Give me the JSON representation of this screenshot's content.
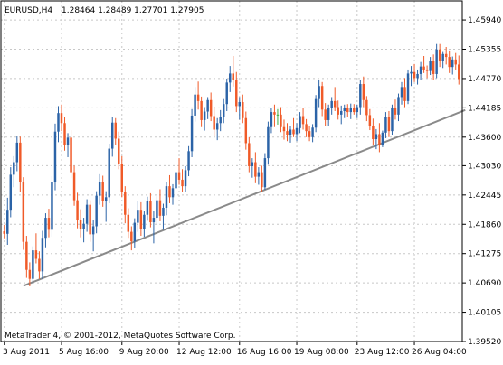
{
  "header": {
    "symbol": "EURUSD,H4",
    "ohlc": "1.28464 1.28489 1.27701 1.27905"
  },
  "watermark": "MetaTrader 4, © 2001-2012, MetaQuotes Software Corp.",
  "colors": {
    "bull": "#2b63a7",
    "bear": "#f05a28",
    "doji": "#3cb043",
    "trendline": "#8a8a8a",
    "grid": "#c8c8c8",
    "frame": "#000000"
  },
  "chart_data": {
    "type": "candlestick",
    "ylim": [
      1.3952,
      1.4632
    ],
    "y_ticks": [
      "1.45940",
      "1.45355",
      "1.44770",
      "1.44185",
      "1.43600",
      "1.43030",
      "1.42445",
      "1.41860",
      "1.41275",
      "1.40690",
      "1.40105",
      "1.39520"
    ],
    "x_ticks": [
      "3 Aug 2011",
      "5 Aug 16:00",
      "9 Aug 20:00",
      "12 Aug 12:00",
      "16 Aug 16:00",
      "19 Aug 08:00",
      "23 Aug 12:00",
      "26 Aug 04:00"
    ],
    "grid": true,
    "trendline": {
      "from": {
        "bar": 6,
        "price": 1.4063
      },
      "to": {
        "bar": 145,
        "price": 1.4414
      }
    },
    "candles": [
      [
        1.4172,
        1.4185,
        1.4158,
        1.4167
      ],
      [
        1.4167,
        1.4239,
        1.4145,
        1.4215
      ],
      [
        1.4215,
        1.43,
        1.42,
        1.4285
      ],
      [
        1.4285,
        1.4322,
        1.426,
        1.431
      ],
      [
        1.431,
        1.4362,
        1.4292,
        1.4349
      ],
      [
        1.4349,
        1.4361,
        1.425,
        1.427
      ],
      [
        1.427,
        1.428,
        1.4135,
        1.4151
      ],
      [
        1.4151,
        1.4163,
        1.4079,
        1.4095
      ],
      [
        1.4095,
        1.411,
        1.4062,
        1.4077
      ],
      [
        1.4077,
        1.4142,
        1.4068,
        1.4134
      ],
      [
        1.4134,
        1.4168,
        1.4108,
        1.4117
      ],
      [
        1.4117,
        1.4132,
        1.4077,
        1.4092
      ],
      [
        1.4092,
        1.4173,
        1.4077,
        1.4159
      ],
      [
        1.4159,
        1.4208,
        1.414,
        1.4199
      ],
      [
        1.4199,
        1.4217,
        1.416,
        1.4175
      ],
      [
        1.4175,
        1.4282,
        1.4161,
        1.4271
      ],
      [
        1.4271,
        1.4387,
        1.4254,
        1.4371
      ],
      [
        1.4371,
        1.4422,
        1.435,
        1.4408
      ],
      [
        1.4408,
        1.4425,
        1.4372,
        1.4388
      ],
      [
        1.4388,
        1.44,
        1.4333,
        1.4345
      ],
      [
        1.4345,
        1.4368,
        1.432,
        1.4359
      ],
      [
        1.4359,
        1.4374,
        1.4278,
        1.429
      ],
      [
        1.429,
        1.4303,
        1.4223,
        1.4234
      ],
      [
        1.4234,
        1.4249,
        1.4178,
        1.4195
      ],
      [
        1.4195,
        1.4216,
        1.416,
        1.4177
      ],
      [
        1.4177,
        1.4199,
        1.415,
        1.4187
      ],
      [
        1.4187,
        1.4236,
        1.4171,
        1.4225
      ],
      [
        1.4225,
        1.4234,
        1.4151,
        1.4166
      ],
      [
        1.4166,
        1.4194,
        1.4132,
        1.4182
      ],
      [
        1.4182,
        1.4252,
        1.4168,
        1.4243
      ],
      [
        1.4243,
        1.4286,
        1.4225,
        1.4271
      ],
      [
        1.4271,
        1.4283,
        1.4221,
        1.4233
      ],
      [
        1.4233,
        1.4252,
        1.4191,
        1.424
      ],
      [
        1.424,
        1.4347,
        1.4228,
        1.4337
      ],
      [
        1.4337,
        1.4401,
        1.4321,
        1.4389
      ],
      [
        1.4389,
        1.4398,
        1.4344,
        1.4357
      ],
      [
        1.4357,
        1.4371,
        1.4296,
        1.4307
      ],
      [
        1.4307,
        1.4322,
        1.424,
        1.4251
      ],
      [
        1.4251,
        1.4262,
        1.4188,
        1.4205
      ],
      [
        1.4205,
        1.4218,
        1.4159,
        1.4171
      ],
      [
        1.4171,
        1.4182,
        1.4134,
        1.4152
      ],
      [
        1.4152,
        1.4198,
        1.4138,
        1.4189
      ],
      [
        1.4189,
        1.4232,
        1.4171,
        1.4215
      ],
      [
        1.4215,
        1.423,
        1.4163,
        1.4176
      ],
      [
        1.4176,
        1.4212,
        1.4161,
        1.4205
      ],
      [
        1.4205,
        1.4241,
        1.4193,
        1.4232
      ],
      [
        1.4232,
        1.4248,
        1.418,
        1.419
      ],
      [
        1.419,
        1.4213,
        1.4148,
        1.4199
      ],
      [
        1.4199,
        1.4242,
        1.4186,
        1.4234
      ],
      [
        1.4234,
        1.4256,
        1.4192,
        1.4203
      ],
      [
        1.4203,
        1.4227,
        1.4175,
        1.4219
      ],
      [
        1.4219,
        1.427,
        1.4204,
        1.4262
      ],
      [
        1.4262,
        1.4284,
        1.4228,
        1.424
      ],
      [
        1.424,
        1.4266,
        1.4225,
        1.4258
      ],
      [
        1.4258,
        1.43,
        1.4246,
        1.429
      ],
      [
        1.429,
        1.4318,
        1.4265,
        1.4275
      ],
      [
        1.4275,
        1.4296,
        1.425,
        1.4262
      ],
      [
        1.4262,
        1.4302,
        1.425,
        1.4294
      ],
      [
        1.4294,
        1.4342,
        1.4282,
        1.4332
      ],
      [
        1.4332,
        1.4416,
        1.432,
        1.4403
      ],
      [
        1.4403,
        1.446,
        1.4391,
        1.4445
      ],
      [
        1.4445,
        1.4471,
        1.4415,
        1.4432
      ],
      [
        1.4432,
        1.4441,
        1.438,
        1.4394
      ],
      [
        1.4394,
        1.442,
        1.4373,
        1.4411
      ],
      [
        1.4411,
        1.444,
        1.4396,
        1.4434
      ],
      [
        1.4434,
        1.4449,
        1.4392,
        1.4402
      ],
      [
        1.4402,
        1.4421,
        1.4362,
        1.4375
      ],
      [
        1.4375,
        1.4398,
        1.4354,
        1.4388
      ],
      [
        1.4388,
        1.4414,
        1.4372,
        1.4401
      ],
      [
        1.4401,
        1.4436,
        1.4388,
        1.4426
      ],
      [
        1.4426,
        1.4477,
        1.4412,
        1.4469
      ],
      [
        1.4469,
        1.4502,
        1.445,
        1.4487
      ],
      [
        1.4487,
        1.4522,
        1.4461,
        1.4474
      ],
      [
        1.4474,
        1.449,
        1.441,
        1.4422
      ],
      [
        1.4422,
        1.444,
        1.4395,
        1.443
      ],
      [
        1.443,
        1.4445,
        1.4388,
        1.4398
      ],
      [
        1.4398,
        1.4411,
        1.4335,
        1.4348
      ],
      [
        1.4348,
        1.436,
        1.429,
        1.4302
      ],
      [
        1.4302,
        1.4318,
        1.4279,
        1.431
      ],
      [
        1.431,
        1.433,
        1.4268,
        1.4281
      ],
      [
        1.4281,
        1.43,
        1.4265,
        1.429
      ],
      [
        1.429,
        1.4303,
        1.425,
        1.426
      ],
      [
        1.426,
        1.4328,
        1.4255,
        1.4318
      ],
      [
        1.4318,
        1.4391,
        1.4305,
        1.438
      ],
      [
        1.438,
        1.4418,
        1.4368,
        1.441
      ],
      [
        1.441,
        1.4425,
        1.438,
        1.4405
      ],
      [
        1.4405,
        1.4416,
        1.4385,
        1.4405
      ],
      [
        1.4405,
        1.442,
        1.437,
        1.438
      ],
      [
        1.438,
        1.4395,
        1.4355,
        1.4372
      ],
      [
        1.4372,
        1.4388,
        1.4352,
        1.4365
      ],
      [
        1.4365,
        1.4383,
        1.4349,
        1.4375
      ],
      [
        1.4375,
        1.4398,
        1.436,
        1.4366
      ],
      [
        1.4366,
        1.4388,
        1.4352,
        1.4378
      ],
      [
        1.4378,
        1.441,
        1.4368,
        1.4402
      ],
      [
        1.4402,
        1.4418,
        1.4375,
        1.4386
      ],
      [
        1.4386,
        1.4396,
        1.436,
        1.4372
      ],
      [
        1.4372,
        1.4383,
        1.4352,
        1.436
      ],
      [
        1.436,
        1.4386,
        1.435,
        1.4379
      ],
      [
        1.4379,
        1.4444,
        1.437,
        1.4436
      ],
      [
        1.4436,
        1.4474,
        1.442,
        1.4462
      ],
      [
        1.4462,
        1.447,
        1.4402,
        1.4415
      ],
      [
        1.4415,
        1.4428,
        1.4383,
        1.4394
      ],
      [
        1.4394,
        1.4425,
        1.4382,
        1.4418
      ],
      [
        1.4418,
        1.444,
        1.4405,
        1.4432
      ],
      [
        1.4432,
        1.446,
        1.4412,
        1.442
      ],
      [
        1.442,
        1.4433,
        1.4395,
        1.4405
      ],
      [
        1.4405,
        1.4423,
        1.4386,
        1.4412
      ],
      [
        1.4412,
        1.4425,
        1.4398,
        1.4418
      ],
      [
        1.4418,
        1.4426,
        1.44,
        1.441
      ],
      [
        1.441,
        1.4427,
        1.4396,
        1.4419
      ],
      [
        1.4419,
        1.4426,
        1.4405,
        1.441
      ],
      [
        1.441,
        1.4425,
        1.4398,
        1.442
      ],
      [
        1.442,
        1.4475,
        1.4405,
        1.4466
      ],
      [
        1.4466,
        1.4481,
        1.442,
        1.4434
      ],
      [
        1.4434,
        1.4442,
        1.4392,
        1.4404
      ],
      [
        1.4404,
        1.4416,
        1.4374,
        1.4383
      ],
      [
        1.4383,
        1.4397,
        1.4344,
        1.4356
      ],
      [
        1.4356,
        1.4376,
        1.4336,
        1.4366
      ],
      [
        1.4366,
        1.4388,
        1.433,
        1.4345
      ],
      [
        1.4345,
        1.4373,
        1.434,
        1.4369
      ],
      [
        1.4369,
        1.441,
        1.4358,
        1.4401
      ],
      [
        1.4401,
        1.4412,
        1.436,
        1.4372
      ],
      [
        1.4372,
        1.4425,
        1.4365,
        1.4418
      ],
      [
        1.4418,
        1.4435,
        1.4395,
        1.4405
      ],
      [
        1.4405,
        1.4447,
        1.4392,
        1.444
      ],
      [
        1.444,
        1.447,
        1.4425,
        1.446
      ],
      [
        1.446,
        1.4478,
        1.442,
        1.4432
      ],
      [
        1.4432,
        1.4495,
        1.4426,
        1.4487
      ],
      [
        1.4487,
        1.4502,
        1.4462,
        1.449
      ],
      [
        1.449,
        1.4506,
        1.447,
        1.4478
      ],
      [
        1.4478,
        1.4495,
        1.4465,
        1.4486
      ],
      [
        1.4486,
        1.451,
        1.4474,
        1.4501
      ],
      [
        1.4501,
        1.4522,
        1.4488,
        1.4495
      ],
      [
        1.4495,
        1.4503,
        1.4478,
        1.4492
      ],
      [
        1.4492,
        1.452,
        1.4484,
        1.4512
      ],
      [
        1.4512,
        1.4525,
        1.4474,
        1.4486
      ],
      [
        1.4486,
        1.4546,
        1.4478,
        1.4535
      ],
      [
        1.4535,
        1.4546,
        1.45,
        1.4512
      ],
      [
        1.4512,
        1.453,
        1.4498,
        1.4526
      ],
      [
        1.4526,
        1.454,
        1.4505,
        1.452
      ],
      [
        1.452,
        1.4533,
        1.4488,
        1.45
      ],
      [
        1.45,
        1.4521,
        1.4485,
        1.4515
      ],
      [
        1.4515,
        1.4528,
        1.4495,
        1.4505
      ],
      [
        1.4505,
        1.4523,
        1.4465,
        1.4476
      ]
    ]
  }
}
